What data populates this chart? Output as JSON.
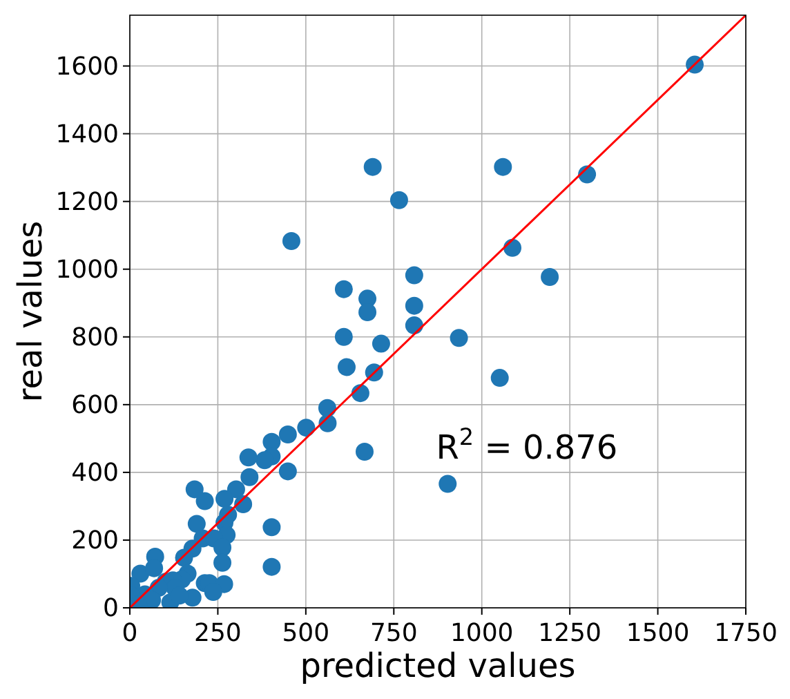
{
  "chart_data": {
    "type": "scatter",
    "xlabel": "predicted values",
    "ylabel": "real values",
    "xlim": [
      0,
      1750
    ],
    "ylim": [
      0,
      1750
    ],
    "xticks": [
      0,
      250,
      500,
      750,
      1000,
      1250,
      1500,
      1750
    ],
    "yticks": [
      0,
      200,
      400,
      600,
      800,
      1000,
      1200,
      1400,
      1600
    ],
    "grid": true,
    "annotations": [
      "R$^{2}$ = 0.876"
    ],
    "series": [
      {
        "color": "#1f77b4",
        "marker": "circle",
        "x": [
          1605,
          690,
          765,
          1060,
          1299,
          1087,
          1193,
          808,
          808,
          808,
          935,
          1051,
          459,
          608,
          675,
          675,
          608,
          616,
          714,
          694,
          655,
          561,
          903,
          667,
          562,
          501,
          449,
          403,
          403,
          383,
          337,
          449,
          340,
          302,
          184,
          213,
          269,
          322,
          279,
          269,
          190,
          275,
          207,
          239,
          263,
          178,
          403,
          154,
          263,
          72,
          30,
          69,
          403,
          164,
          148,
          122,
          102,
          213,
          226,
          268,
          237,
          178,
          128,
          82,
          43,
          4,
          4,
          63,
          115,
          24,
          141
        ],
        "values": [
          1604,
          1302,
          1204,
          1302,
          1280,
          1063,
          977,
          982,
          892,
          834,
          797,
          679,
          1083,
          941,
          913,
          873,
          800,
          711,
          780,
          695,
          634,
          590,
          366,
          461,
          545,
          532,
          512,
          490,
          447,
          436,
          444,
          403,
          386,
          350,
          350,
          315,
          322,
          306,
          275,
          252,
          248,
          215,
          205,
          205,
          178,
          175,
          238,
          148,
          133,
          151,
          101,
          117,
          121,
          101,
          84,
          81,
          77,
          73,
          73,
          70,
          47,
          30,
          59,
          59,
          40,
          65,
          36,
          23,
          16,
          9,
          36
        ]
      },
      {
        "type": "line",
        "marker": "none",
        "color": "#ff0000",
        "x": [
          0,
          1750
        ],
        "values": [
          0,
          1750
        ]
      }
    ]
  }
}
